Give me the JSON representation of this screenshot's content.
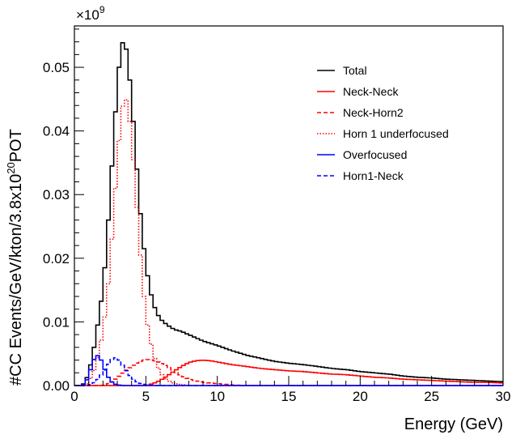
{
  "chart_data": {
    "type": "line",
    "xlabel": "Energy (GeV)",
    "ylabel": "#CC Events/GeV/kton/3.8x10",
    "ylabel_exp": "20",
    "ylabel_tail": "POT",
    "y_multiplier_base": "×10",
    "y_multiplier_exp": "9",
    "xlim": [
      0,
      30
    ],
    "ylim": [
      0,
      0.0565
    ],
    "xticks": [
      0,
      5,
      10,
      15,
      20,
      25,
      30
    ],
    "xtick_labels": [
      "0",
      "5",
      "10",
      "15",
      "20",
      "25",
      "30"
    ],
    "yticks": [
      0,
      0.01,
      0.02,
      0.03,
      0.04,
      0.05
    ],
    "ytick_labels": [
      "0.00",
      "0.01",
      "0.02",
      "0.03",
      "0.04",
      "0.05"
    ],
    "grid": false,
    "legend_position": "top-right",
    "bin_width": 0.25,
    "series": [
      {
        "name": "Total",
        "color": "#000000",
        "dash": "solid",
        "points": [
          [
            0.5,
            0
          ],
          [
            0.75,
            0.0005
          ],
          [
            1.0,
            0.002
          ],
          [
            1.25,
            0.0045
          ],
          [
            1.5,
            0.0075
          ],
          [
            1.75,
            0.0115
          ],
          [
            2.0,
            0.015
          ],
          [
            2.25,
            0.022
          ],
          [
            2.5,
            0.03
          ],
          [
            2.75,
            0.039
          ],
          [
            3.0,
            0.047
          ],
          [
            3.25,
            0.053
          ],
          [
            3.5,
            0.0547
          ],
          [
            3.75,
            0.051
          ],
          [
            4.0,
            0.045
          ],
          [
            4.25,
            0.038
          ],
          [
            4.5,
            0.03
          ],
          [
            4.75,
            0.024
          ],
          [
            5.0,
            0.019
          ],
          [
            5.25,
            0.0155
          ],
          [
            5.5,
            0.013
          ],
          [
            5.75,
            0.0115
          ],
          [
            6.0,
            0.0105
          ],
          [
            6.5,
            0.0095
          ],
          [
            7.0,
            0.0088
          ],
          [
            7.5,
            0.0085
          ],
          [
            8.0,
            0.008
          ],
          [
            9.0,
            0.007
          ],
          [
            10.0,
            0.0063
          ],
          [
            11.0,
            0.0055
          ],
          [
            12.0,
            0.0048
          ],
          [
            13.0,
            0.0043
          ],
          [
            14.0,
            0.0038
          ],
          [
            15.0,
            0.0035
          ],
          [
            16.0,
            0.0033
          ],
          [
            17.0,
            0.003
          ],
          [
            18.0,
            0.0027
          ],
          [
            19.0,
            0.0025
          ],
          [
            20.0,
            0.0022
          ],
          [
            21.0,
            0.002
          ],
          [
            22.0,
            0.0018
          ],
          [
            23.0,
            0.0015
          ],
          [
            24.0,
            0.0013
          ],
          [
            25.0,
            0.0012
          ],
          [
            26.0,
            0.001
          ],
          [
            27.0,
            0.0009
          ],
          [
            28.0,
            0.0008
          ],
          [
            29.0,
            0.0007
          ],
          [
            30.0,
            0.0006
          ]
        ]
      },
      {
        "name": "Neck-Neck",
        "color": "#ff0000",
        "dash": "solid",
        "points": [
          [
            5.0,
            0
          ],
          [
            5.5,
            0.0003
          ],
          [
            6.0,
            0.0008
          ],
          [
            6.5,
            0.0015
          ],
          [
            7.0,
            0.0023
          ],
          [
            7.5,
            0.003
          ],
          [
            8.0,
            0.0036
          ],
          [
            8.5,
            0.0039
          ],
          [
            9.0,
            0.004
          ],
          [
            9.5,
            0.0039
          ],
          [
            10.0,
            0.0037
          ],
          [
            11.0,
            0.0033
          ],
          [
            12.0,
            0.003
          ],
          [
            13.0,
            0.0027
          ],
          [
            14.0,
            0.0025
          ],
          [
            15.0,
            0.0023
          ],
          [
            16.0,
            0.0022
          ],
          [
            17.0,
            0.002
          ],
          [
            18.0,
            0.0018
          ],
          [
            19.0,
            0.0017
          ],
          [
            20.0,
            0.0015
          ],
          [
            21.0,
            0.0013
          ],
          [
            22.0,
            0.0012
          ],
          [
            23.0,
            0.001
          ],
          [
            24.0,
            0.0009
          ],
          [
            25.0,
            0.0008
          ],
          [
            26.0,
            0.0007
          ],
          [
            27.0,
            0.0006
          ],
          [
            28.0,
            0.0005
          ],
          [
            29.0,
            0.0005
          ],
          [
            30.0,
            0.0004
          ]
        ]
      },
      {
        "name": "Neck-Horn2",
        "color": "#ff0000",
        "dash": "dashed",
        "points": [
          [
            2.0,
            0
          ],
          [
            2.5,
            0.0004
          ],
          [
            3.0,
            0.0012
          ],
          [
            3.5,
            0.0022
          ],
          [
            4.0,
            0.003
          ],
          [
            4.5,
            0.0037
          ],
          [
            5.0,
            0.0041
          ],
          [
            5.5,
            0.004
          ],
          [
            6.0,
            0.0036
          ],
          [
            6.5,
            0.003
          ],
          [
            7.0,
            0.0022
          ],
          [
            7.5,
            0.0015
          ],
          [
            8.0,
            0.001
          ],
          [
            9.0,
            0.0005
          ],
          [
            10.0,
            0.0003
          ],
          [
            11.0,
            0.0001
          ],
          [
            12.0,
            0
          ]
        ]
      },
      {
        "name": "Horn 1 underfocused",
        "color": "#ff0000",
        "dash": "dotted",
        "points": [
          [
            0.75,
            0
          ],
          [
            1.0,
            0.0005
          ],
          [
            1.5,
            0.003
          ],
          [
            2.0,
            0.0085
          ],
          [
            2.25,
            0.013
          ],
          [
            2.5,
            0.019
          ],
          [
            2.75,
            0.027
          ],
          [
            3.0,
            0.035
          ],
          [
            3.25,
            0.042
          ],
          [
            3.5,
            0.0458
          ],
          [
            3.75,
            0.044
          ],
          [
            4.0,
            0.039
          ],
          [
            4.25,
            0.032
          ],
          [
            4.5,
            0.024
          ],
          [
            4.75,
            0.017
          ],
          [
            5.0,
            0.011
          ],
          [
            5.5,
            0.005
          ],
          [
            6.0,
            0.002
          ],
          [
            6.5,
            0.0008
          ],
          [
            7.0,
            0.0003
          ],
          [
            8.0,
            0
          ]
        ]
      },
      {
        "name": "Overfocused",
        "color": "#0000ff",
        "dash": "solid",
        "points": [
          [
            0.5,
            0
          ],
          [
            0.75,
            0.0003
          ],
          [
            1.0,
            0.0015
          ],
          [
            1.25,
            0.0035
          ],
          [
            1.5,
            0.0047
          ],
          [
            1.75,
            0.0047
          ],
          [
            2.0,
            0.0033
          ],
          [
            2.25,
            0.0018
          ],
          [
            2.5,
            0.0008
          ],
          [
            2.75,
            0.0003
          ],
          [
            3.0,
            0.0001
          ],
          [
            3.5,
            0
          ]
        ]
      },
      {
        "name": "Horn1-Neck",
        "color": "#0000ff",
        "dash": "dashed",
        "points": [
          [
            1.0,
            0
          ],
          [
            1.5,
            0.0006
          ],
          [
            2.0,
            0.002
          ],
          [
            2.5,
            0.0038
          ],
          [
            2.75,
            0.0044
          ],
          [
            3.0,
            0.0043
          ],
          [
            3.25,
            0.0037
          ],
          [
            3.5,
            0.0027
          ],
          [
            4.0,
            0.0012
          ],
          [
            4.5,
            0.0004
          ],
          [
            5.0,
            0.0001
          ],
          [
            5.5,
            0
          ]
        ]
      }
    ]
  }
}
